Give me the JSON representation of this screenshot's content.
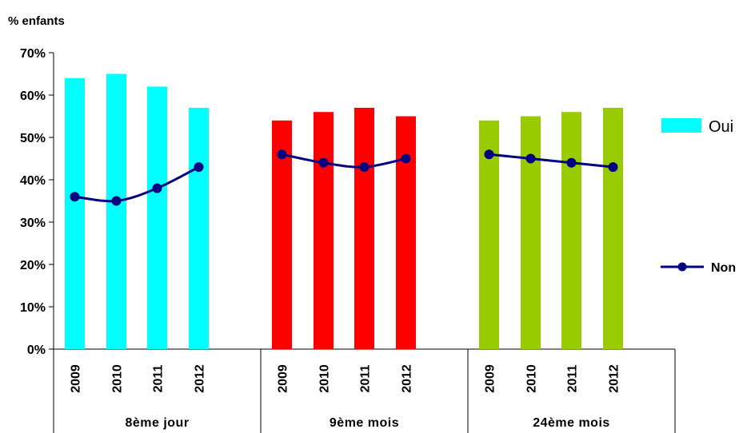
{
  "chart_data": {
    "type": "bar",
    "ylabel": "% enfants",
    "ylim": [
      0,
      70
    ],
    "yticks": [
      "0%",
      "10%",
      "20%",
      "30%",
      "40%",
      "50%",
      "60%",
      "70%"
    ],
    "groups": [
      {
        "label": "8ème jour",
        "color": "#00FFFF",
        "years": [
          "2009",
          "2010",
          "2011",
          "2012"
        ]
      },
      {
        "label": "9ème mois",
        "color": "#FF0000",
        "years": [
          "2009",
          "2010",
          "2011",
          "2012"
        ]
      },
      {
        "label": "24ème mois",
        "color": "#99CC00",
        "years": [
          "2009",
          "2010",
          "2011",
          "2012"
        ]
      }
    ],
    "series": [
      {
        "name": "Oui",
        "type": "bar",
        "values": [
          [
            64,
            65,
            62,
            57
          ],
          [
            54,
            56,
            57,
            55
          ],
          [
            54,
            55,
            56,
            57
          ]
        ]
      },
      {
        "name": "Non",
        "type": "line",
        "color": "#000080",
        "values": [
          [
            36,
            35,
            38,
            43
          ],
          [
            46,
            44,
            43,
            45
          ],
          [
            46,
            45,
            44,
            43
          ]
        ]
      }
    ],
    "legend": {
      "position": "right",
      "entries": [
        "Oui",
        "Non"
      ]
    },
    "grid": false
  }
}
